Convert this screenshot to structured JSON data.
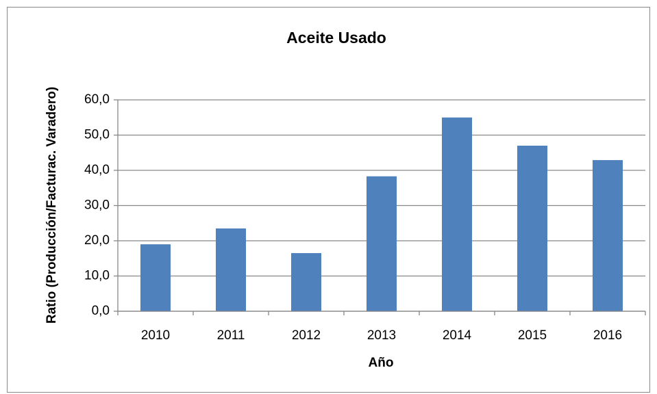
{
  "chart_data": {
    "type": "bar",
    "title": "Aceite Usado",
    "x_label": "Año",
    "y_label": "Ratio (Producción/Facturac. Varadero)",
    "categories": [
      "2010",
      "2011",
      "2012",
      "2013",
      "2014",
      "2015",
      "2016"
    ],
    "values": [
      19.0,
      23.5,
      16.5,
      38.3,
      55.0,
      47.0,
      42.9
    ],
    "color": "#4f81bd",
    "ylim": [
      0,
      60
    ],
    "yticks": [
      {
        "value": 0,
        "label": "0,0"
      },
      {
        "value": 10,
        "label": "10,0"
      },
      {
        "value": 20,
        "label": "20,0"
      },
      {
        "value": 30,
        "label": "30,0"
      },
      {
        "value": 40,
        "label": "40,0"
      },
      {
        "value": 50,
        "label": "50,0"
      },
      {
        "value": 60,
        "label": "60,0"
      }
    ],
    "grid": true
  }
}
